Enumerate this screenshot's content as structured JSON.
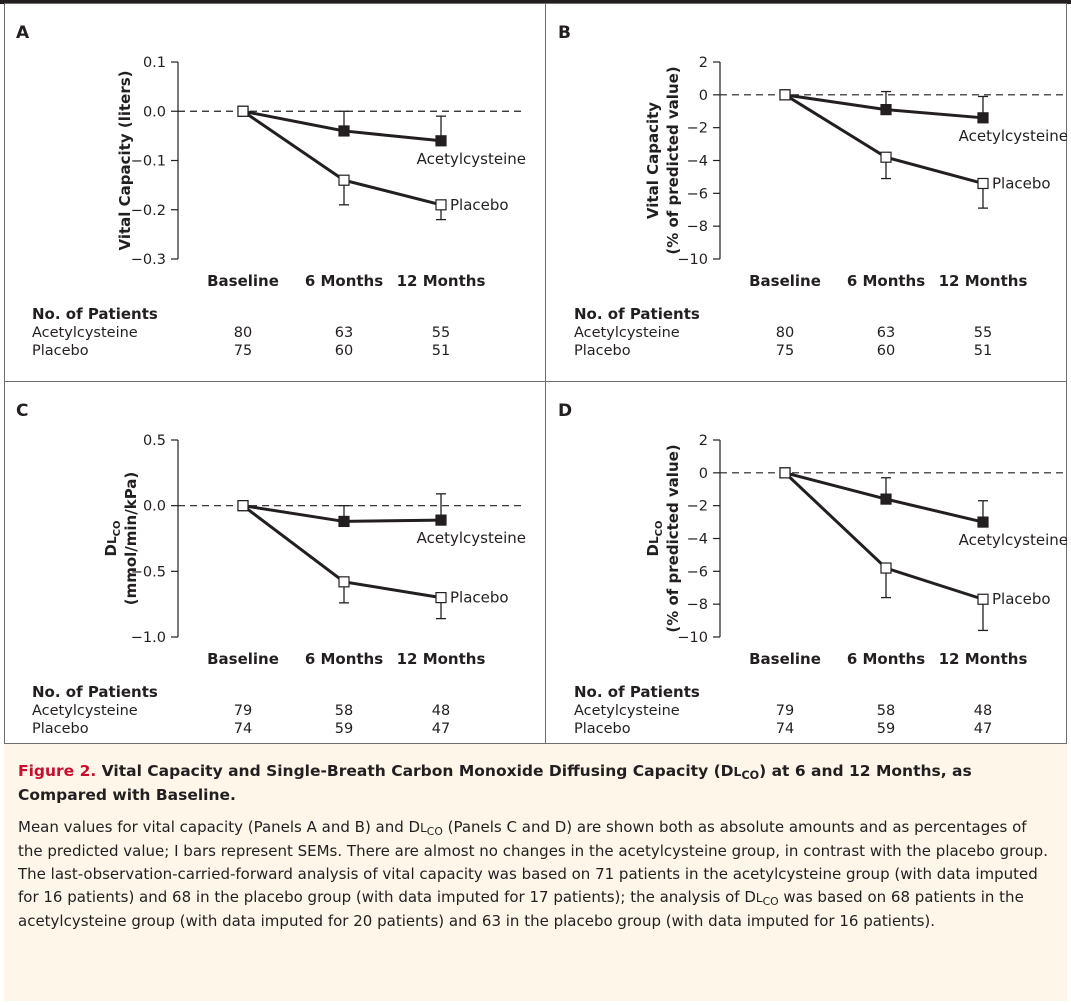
{
  "chart_data": [
    {
      "type": "line",
      "panel_label": "A",
      "ylabel_lines": [
        "Vital Capacity (liters)"
      ],
      "ylim": [
        -0.3,
        0.1
      ],
      "yticks": [
        0.1,
        0.0,
        -0.1,
        -0.2,
        -0.3
      ],
      "ytick_labels": [
        "0.1",
        "0.0",
        "−0.1",
        "−0.2",
        "−0.3"
      ],
      "categories": [
        "Baseline",
        "6 Months",
        "12 Months"
      ],
      "series": [
        {
          "name": "Acetylcysteine",
          "marker": "filled-square",
          "values": [
            0.0,
            -0.04,
            -0.06
          ],
          "err_up": [
            0,
            0.04,
            0.05
          ],
          "err_down": [
            0,
            0,
            0
          ]
        },
        {
          "name": "Placebo",
          "marker": "open-square",
          "values": [
            0.0,
            -0.14,
            -0.19
          ],
          "err_up": [
            0,
            0,
            0
          ],
          "err_down": [
            0,
            0.05,
            0.03
          ]
        }
      ],
      "patients_header": "No. of Patients",
      "patients": [
        {
          "label": "Acetylcysteine",
          "counts": [
            "80",
            "63",
            "55"
          ]
        },
        {
          "label": "Placebo",
          "counts": [
            "75",
            "60",
            "51"
          ]
        }
      ]
    },
    {
      "type": "line",
      "panel_label": "B",
      "ylabel_lines": [
        "Vital Capacity",
        "(% of predicted value)"
      ],
      "ylim": [
        -10,
        2
      ],
      "yticks": [
        2,
        0,
        -2,
        -4,
        -6,
        -8,
        -10
      ],
      "ytick_labels": [
        "2",
        "0",
        "−2",
        "−4",
        "−6",
        "−8",
        "−10"
      ],
      "categories": [
        "Baseline",
        "6 Months",
        "12 Months"
      ],
      "series": [
        {
          "name": "Acetylcysteine",
          "marker": "filled-square",
          "values": [
            0,
            -0.9,
            -1.4
          ],
          "err_up": [
            0,
            1.1,
            1.3
          ],
          "err_down": [
            0,
            0,
            0
          ]
        },
        {
          "name": "Placebo",
          "marker": "open-square",
          "values": [
            0,
            -3.8,
            -5.4
          ],
          "err_up": [
            0,
            0,
            0
          ],
          "err_down": [
            0,
            1.3,
            1.5
          ]
        }
      ],
      "patients_header": "No. of Patients",
      "patients": [
        {
          "label": "Acetylcysteine",
          "counts": [
            "80",
            "63",
            "55"
          ]
        },
        {
          "label": "Placebo",
          "counts": [
            "75",
            "60",
            "51"
          ]
        }
      ]
    },
    {
      "type": "line",
      "panel_label": "C",
      "ylabel_lines": [
        "DL",
        "(mmol/min/kPa)"
      ],
      "ylabel_sub": "CO",
      "ylim": [
        -1.0,
        0.5
      ],
      "yticks": [
        0.5,
        0.0,
        -0.5,
        -1.0
      ],
      "ytick_labels": [
        "0.5",
        "0.0",
        "−0.5",
        "−1.0"
      ],
      "categories": [
        "Baseline",
        "6 Months",
        "12 Months"
      ],
      "series": [
        {
          "name": "Acetylcysteine",
          "marker": "filled-square",
          "values": [
            0.0,
            -0.12,
            -0.11
          ],
          "err_up": [
            0,
            0.12,
            0.2
          ],
          "err_down": [
            0,
            0,
            0
          ]
        },
        {
          "name": "Placebo",
          "marker": "open-square",
          "values": [
            0.0,
            -0.58,
            -0.7
          ],
          "err_up": [
            0,
            0,
            0
          ],
          "err_down": [
            0,
            0.16,
            0.16
          ]
        }
      ],
      "patients_header": "No. of Patients",
      "patients": [
        {
          "label": "Acetylcysteine",
          "counts": [
            "79",
            "58",
            "48"
          ]
        },
        {
          "label": "Placebo",
          "counts": [
            "74",
            "59",
            "47"
          ]
        }
      ]
    },
    {
      "type": "line",
      "panel_label": "D",
      "ylabel_lines": [
        "DL",
        "(% of predicted value)"
      ],
      "ylabel_sub": "CO",
      "ylim": [
        -10,
        2
      ],
      "yticks": [
        2,
        0,
        -2,
        -4,
        -6,
        -8,
        -10
      ],
      "ytick_labels": [
        "2",
        "0",
        "−2",
        "−4",
        "−6",
        "−8",
        "−10"
      ],
      "categories": [
        "Baseline",
        "6 Months",
        "12 Months"
      ],
      "series": [
        {
          "name": "Acetylcysteine",
          "marker": "filled-square",
          "values": [
            0,
            -1.6,
            -3.0
          ],
          "err_up": [
            0,
            1.3,
            1.3
          ],
          "err_down": [
            0,
            0,
            0
          ]
        },
        {
          "name": "Placebo",
          "marker": "open-square",
          "values": [
            0,
            -5.8,
            -7.7
          ],
          "err_up": [
            0,
            0,
            0
          ],
          "err_down": [
            0,
            1.8,
            1.9
          ]
        }
      ],
      "patients_header": "No. of Patients",
      "patients": [
        {
          "label": "Acetylcysteine",
          "counts": [
            "79",
            "58",
            "48"
          ]
        },
        {
          "label": "Placebo",
          "counts": [
            "74",
            "59",
            "47"
          ]
        }
      ]
    }
  ],
  "caption": {
    "figure_label": "Figure 2.",
    "title_part1": "Vital Capacity and Single-Breath Carbon Monoxide Diffusing Capacity (D",
    "title_smallcap": "L",
    "title_sub": "CO",
    "title_part2": ") at 6 and 12 Months, as Compared with Baseline.",
    "body_part1": "Mean values for vital capacity (Panels A and B) and D",
    "body_smallcap1": "L",
    "body_sub1": "CO",
    "body_part2": " (Panels C and D) are shown both as absolute amounts and as percentages of the predicted value; I bars represent SEMs. There are almost no changes in the acetylcysteine group, in contrast with the placebo group. The last-observation-carried-forward analysis of vital capacity was based on 71 patients in the acetylcysteine group (with data imputed for 16 patients) and 68 in the placebo group (with data imputed for 17 patients); the analysis of D",
    "body_smallcap2": "L",
    "body_sub2": "CO",
    "body_part3": " was based on 68 patients in the acetylcysteine group (with data imputed for 20 patients) and 63 in the placebo group (with data imputed for 16 patients)."
  }
}
